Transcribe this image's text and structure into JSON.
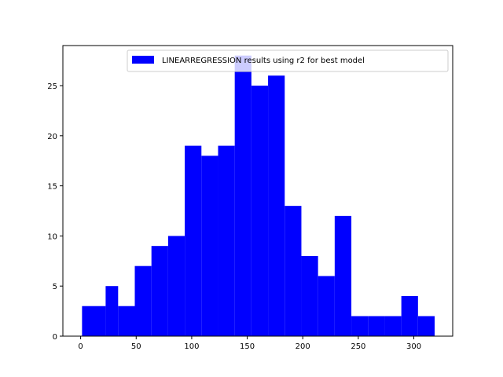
{
  "chart_data": {
    "type": "histogram",
    "bin_edges": [
      1.25,
      22.5,
      33.75,
      48.75,
      63.75,
      78.75,
      93.75,
      108.75,
      123.75,
      138.75,
      153.75,
      168.75,
      183.75,
      198.75,
      213.75,
      228.75,
      243.75,
      258.75,
      273.75,
      288.75,
      303.75,
      318.75
    ],
    "values": [
      3,
      5,
      3,
      7,
      9,
      10,
      19,
      18,
      19,
      28,
      25,
      26,
      13,
      8,
      6,
      12,
      2,
      2,
      2,
      4,
      2
    ],
    "title": "",
    "xlabel": "",
    "ylabel": "",
    "xlim": [
      -16,
      335
    ],
    "ylim": [
      0,
      29
    ],
    "xticks": [
      0,
      50,
      100,
      150,
      200,
      250,
      300
    ],
    "yticks": [
      0,
      5,
      10,
      15,
      20,
      25
    ],
    "bar_color": "#0000ff",
    "grid": false,
    "legend": {
      "placement": "upper-right",
      "entries": [
        "LINEARREGRESSION results using r2 for best model"
      ]
    }
  }
}
